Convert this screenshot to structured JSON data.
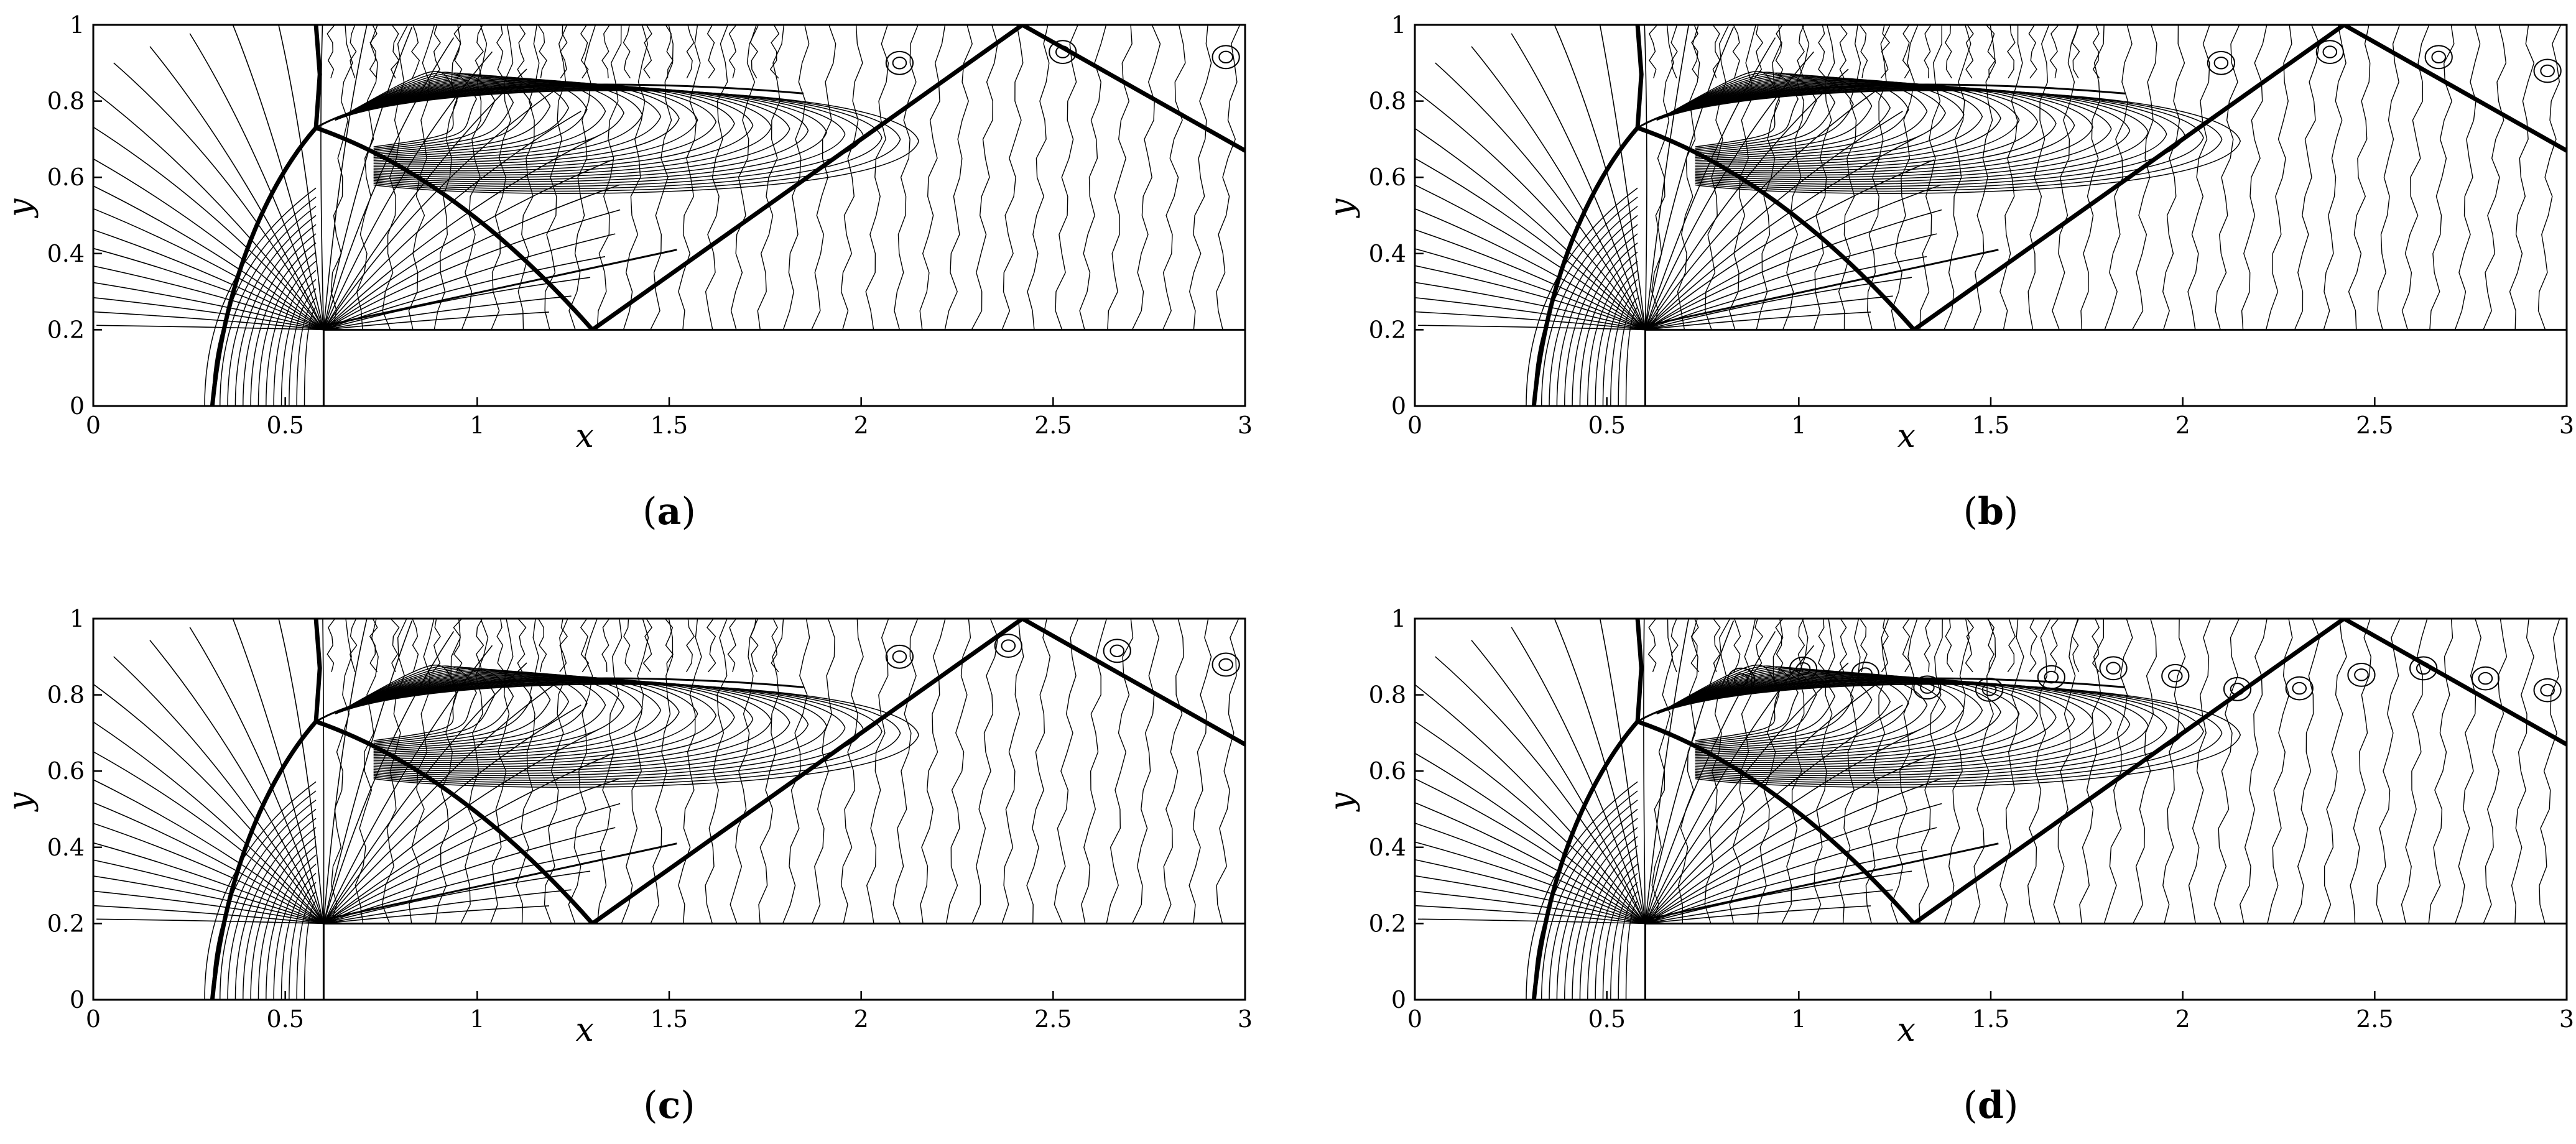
{
  "figure": {
    "panels": [
      {
        "id": "a",
        "label": "a",
        "xlabel": "x",
        "ylabel": "y",
        "x_ticks": [
          "0",
          "0.5",
          "1",
          "1.5",
          "2",
          "2.5",
          "3"
        ],
        "y_ticks": [
          "0",
          "0.2",
          "0.4",
          "0.6",
          "0.8",
          "1"
        ],
        "xlim": [
          0,
          3
        ],
        "ylim": [
          0,
          1
        ],
        "vortex_count": 3
      },
      {
        "id": "b",
        "label": "b",
        "xlabel": "x",
        "ylabel": "y",
        "x_ticks": [
          "0",
          "0.5",
          "1",
          "1.5",
          "2",
          "2.5",
          "3"
        ],
        "y_ticks": [
          "0",
          "0.2",
          "0.4",
          "0.6",
          "0.8",
          "1"
        ],
        "xlim": [
          0,
          3
        ],
        "ylim": [
          0,
          1
        ],
        "vortex_count": 4
      },
      {
        "id": "c",
        "label": "c",
        "xlabel": "x",
        "ylabel": "y",
        "x_ticks": [
          "0",
          "0.5",
          "1",
          "1.5",
          "2",
          "2.5",
          "3"
        ],
        "y_ticks": [
          "0",
          "0.2",
          "0.4",
          "0.6",
          "0.8",
          "1"
        ],
        "xlim": [
          0,
          3
        ],
        "ylim": [
          0,
          1
        ],
        "vortex_count": 4
      },
      {
        "id": "d",
        "label": "d",
        "xlabel": "x",
        "ylabel": "y",
        "x_ticks": [
          "0",
          "0.5",
          "1",
          "1.5",
          "2",
          "2.5",
          "3"
        ],
        "y_ticks": [
          "0",
          "0.2",
          "0.4",
          "0.6",
          "0.8",
          "1"
        ],
        "xlim": [
          0,
          3
        ],
        "ylim": [
          0,
          1
        ],
        "vortex_count": 14
      }
    ],
    "geometry_data": {
      "step_corner": [
        0.6,
        0.2
      ],
      "triple_point": [
        0.58,
        0.73
      ],
      "reflection_point_bottom": [
        1.3,
        0.2
      ],
      "reflection_point_top": [
        2.42,
        1.0
      ]
    },
    "colors": {
      "line": "#000000",
      "background": "#ffffff"
    }
  }
}
